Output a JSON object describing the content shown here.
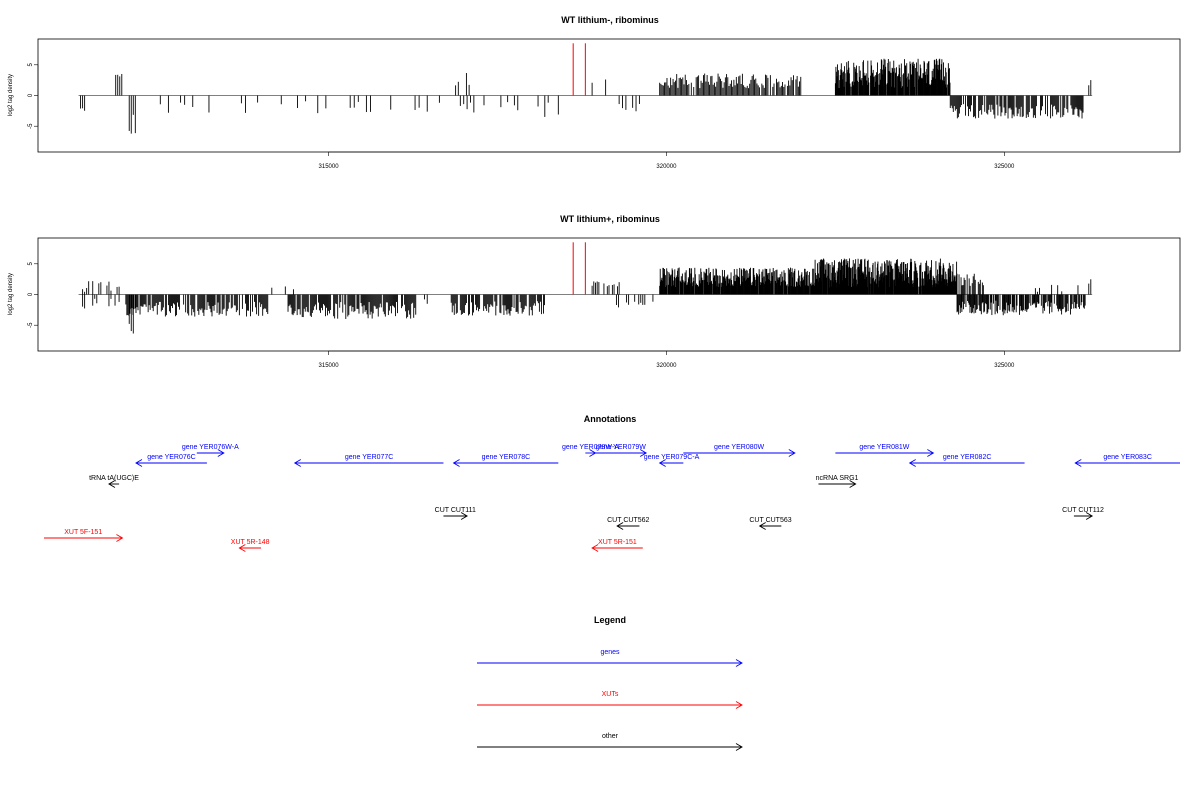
{
  "chart_data": [
    {
      "type": "bar",
      "title": "WT lithium-, ribominus",
      "ylabel": "log2 tag density",
      "xlabel": "",
      "xlim": [
        310700,
        327600
      ],
      "ylim": [
        -9.2,
        9.2
      ],
      "x_ticks": [
        315000,
        320000,
        325000
      ],
      "x_tick_labels": [
        "315000",
        "320000",
        "325000"
      ],
      "y_ticks": [
        -5,
        0,
        5
      ],
      "y_tick_labels": [
        "-5",
        "0",
        "5"
      ],
      "grid": false,
      "bar_color": "#000000",
      "highlight_color": "#ff0000",
      "highlight_bars": [
        {
          "x": 318620,
          "y": 8.5
        },
        {
          "x": 318800,
          "y": 8.5
        }
      ],
      "segments": [
        {
          "x0": 311300,
          "x1": 311420,
          "step": 30,
          "mean": -2.2,
          "amp": 0.6,
          "density": 0.8
        },
        {
          "x0": 311850,
          "x1": 311950,
          "step": 30,
          "mean": 3.4,
          "amp": 0.4,
          "density": 0.8
        },
        {
          "x0": 312050,
          "x1": 312150,
          "step": 30,
          "mean": -4.0,
          "amp": 3.0,
          "density": 1.0
        },
        {
          "x0": 312150,
          "x1": 314000,
          "step": 60,
          "mean": -2.0,
          "amp": 1.0,
          "density": 0.35
        },
        {
          "x0": 314300,
          "x1": 315800,
          "step": 60,
          "mean": -2.3,
          "amp": 1.4,
          "density": 0.35
        },
        {
          "x0": 315800,
          "x1": 316800,
          "step": 60,
          "mean": -2.0,
          "amp": 1.0,
          "density": 0.25
        },
        {
          "x0": 316800,
          "x1": 317200,
          "step": 40,
          "mean": 2.5,
          "amp": 1.2,
          "density": 0.4
        },
        {
          "x0": 316800,
          "x1": 318400,
          "step": 50,
          "mean": -2.2,
          "amp": 1.3,
          "density": 0.45
        },
        {
          "x0": 318900,
          "x1": 319200,
          "step": 40,
          "mean": 2.0,
          "amp": 0.8,
          "density": 0.3
        },
        {
          "x0": 319200,
          "x1": 319800,
          "step": 50,
          "mean": -1.8,
          "amp": 0.8,
          "density": 0.3
        },
        {
          "x0": 319900,
          "x1": 322000,
          "step": 18,
          "mean": 2.4,
          "amp": 1.2,
          "density": 0.9
        },
        {
          "x0": 322500,
          "x1": 324200,
          "step": 8,
          "mean": 3.6,
          "amp": 2.4,
          "density": 0.95
        },
        {
          "x0": 324200,
          "x1": 326200,
          "step": 15,
          "mean": -2.6,
          "amp": 1.2,
          "density": 0.85
        },
        {
          "x0": 326250,
          "x1": 326300,
          "step": 30,
          "mean": 2.5,
          "amp": 1.0,
          "density": 1.0
        }
      ]
    },
    {
      "type": "bar",
      "title": "WT lithium+, ribominus",
      "ylabel": "log2 tag density",
      "xlabel": "",
      "xlim": [
        310700,
        327600
      ],
      "ylim": [
        -9.2,
        9.2
      ],
      "x_ticks": [
        315000,
        320000,
        325000
      ],
      "x_tick_labels": [
        "315000",
        "320000",
        "325000"
      ],
      "y_ticks": [
        -5,
        0,
        5
      ],
      "y_tick_labels": [
        "-5",
        "0",
        "5"
      ],
      "grid": false,
      "bar_color": "#000000",
      "highlight_color": "#ff0000",
      "highlight_bars": [
        {
          "x": 318620,
          "y": 8.5
        },
        {
          "x": 318800,
          "y": 8.5
        }
      ],
      "segments": [
        {
          "x0": 311300,
          "x1": 311900,
          "step": 30,
          "mean": 1.4,
          "amp": 1.0,
          "density": 0.5
        },
        {
          "x0": 311300,
          "x1": 311900,
          "step": 30,
          "mean": -1.5,
          "amp": 0.8,
          "density": 0.5
        },
        {
          "x0": 312000,
          "x1": 314100,
          "step": 15,
          "mean": -2.4,
          "amp": 1.2,
          "density": 0.85
        },
        {
          "x0": 312050,
          "x1": 312150,
          "step": 30,
          "mean": -5.0,
          "amp": 3.0,
          "density": 1.0
        },
        {
          "x0": 314000,
          "x1": 314500,
          "step": 40,
          "mean": 1.0,
          "amp": 0.6,
          "density": 0.3
        },
        {
          "x0": 314400,
          "x1": 316300,
          "step": 15,
          "mean": -2.6,
          "amp": 1.4,
          "density": 0.85
        },
        {
          "x0": 316300,
          "x1": 316700,
          "step": 40,
          "mean": -1.2,
          "amp": 0.5,
          "density": 0.3
        },
        {
          "x0": 316800,
          "x1": 318200,
          "step": 15,
          "mean": -2.3,
          "amp": 1.2,
          "density": 0.85
        },
        {
          "x0": 318900,
          "x1": 319300,
          "step": 25,
          "mean": 1.6,
          "amp": 0.6,
          "density": 0.6
        },
        {
          "x0": 319200,
          "x1": 319800,
          "step": 30,
          "mean": -1.5,
          "amp": 0.6,
          "density": 0.4
        },
        {
          "x0": 319900,
          "x1": 322200,
          "step": 8,
          "mean": 2.8,
          "amp": 1.6,
          "density": 0.95
        },
        {
          "x0": 322200,
          "x1": 324300,
          "step": 6,
          "mean": 3.5,
          "amp": 2.4,
          "density": 0.95
        },
        {
          "x0": 324000,
          "x1": 324700,
          "step": 15,
          "mean": 2.4,
          "amp": 1.0,
          "density": 0.7
        },
        {
          "x0": 324300,
          "x1": 326200,
          "step": 12,
          "mean": -2.2,
          "amp": 1.2,
          "density": 0.75
        },
        {
          "x0": 325400,
          "x1": 326100,
          "step": 30,
          "mean": 1.0,
          "amp": 0.6,
          "density": 0.3
        },
        {
          "x0": 326250,
          "x1": 326300,
          "step": 30,
          "mean": 2.0,
          "amp": 0.5,
          "density": 1.0
        }
      ]
    }
  ],
  "annotations": {
    "title": "Annotations",
    "features": [
      {
        "label": "gene YER076W-A",
        "category": "genes",
        "start": 313050,
        "end": 313450
      },
      {
        "label": "gene YER076C",
        "category": "genes",
        "start": 313200,
        "end": 312150
      },
      {
        "label": "tRNA tA(UGC)E",
        "category": "other",
        "start": 311900,
        "end": 311750
      },
      {
        "label": "gene YER077C",
        "category": "genes",
        "start": 316700,
        "end": 314500
      },
      {
        "label": "gene YER078C",
        "category": "genes",
        "start": 318400,
        "end": 316850
      },
      {
        "label": "gene YER078W-A",
        "category": "genes",
        "start": 318800,
        "end": 318950
      },
      {
        "label": "gene YER079W",
        "category": "genes",
        "start": 318950,
        "end": 319700
      },
      {
        "label": "gene YER079C-A",
        "category": "genes",
        "start": 320250,
        "end": 319900
      },
      {
        "label": "gene YER080W",
        "category": "genes",
        "start": 320250,
        "end": 321900
      },
      {
        "label": "gene YER081W",
        "category": "genes",
        "start": 322500,
        "end": 323950
      },
      {
        "label": "gene YER082C",
        "category": "genes",
        "start": 325300,
        "end": 323600
      },
      {
        "label": "gene YER083C",
        "category": "genes",
        "start": 327600,
        "end": 326050
      },
      {
        "label": "ncRNA SRG1",
        "category": "other",
        "start": 322250,
        "end": 322800
      },
      {
        "label": "CUT CUT111",
        "category": "other",
        "start": 316700,
        "end": 317050
      },
      {
        "label": "CUT CUT562",
        "category": "other",
        "start": 319600,
        "end": 319270
      },
      {
        "label": "CUT CUT563",
        "category": "other",
        "start": 321700,
        "end": 321380
      },
      {
        "label": "CUT CUT112",
        "category": "other",
        "start": 326030,
        "end": 326300
      },
      {
        "label": "XUT 5F-151",
        "category": "xuts",
        "start": 310700,
        "end": 311950
      },
      {
        "label": "XUT 5R-148",
        "category": "xuts",
        "start": 314000,
        "end": 313680
      },
      {
        "label": "XUT 5R-151",
        "category": "xuts",
        "start": 319650,
        "end": 318900
      }
    ]
  },
  "legend": {
    "title": "Legend",
    "items": [
      {
        "key": "genes",
        "label": "genes",
        "color": "#0000ff"
      },
      {
        "key": "xuts",
        "label": "XUTs",
        "color": "#ff0000"
      },
      {
        "key": "other",
        "label": "other",
        "color": "#000000"
      }
    ]
  }
}
